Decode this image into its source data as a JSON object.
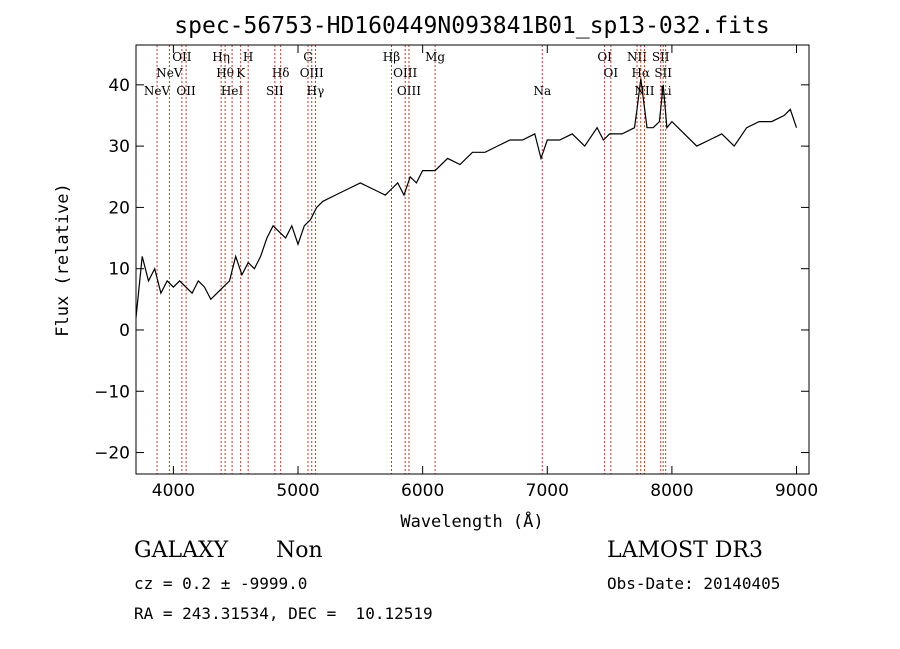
{
  "chart_data": {
    "type": "line",
    "title": "spec-56753-HD160449N093841B01_sp13-032.fits",
    "xlabel": "Wavelength (Å)",
    "ylabel": "Flux (relative)",
    "xlim": [
      3700,
      9100
    ],
    "ylim": [
      -23.5,
      46.5
    ],
    "xticks": [
      4000,
      5000,
      6000,
      7000,
      8000,
      9000
    ],
    "yticks": [
      -20,
      -10,
      0,
      10,
      20,
      30,
      40
    ],
    "grid": false,
    "series": [
      {
        "x": [
          3700,
          3750,
          3800,
          3850,
          3900,
          3950,
          4000,
          4050,
          4100,
          4150,
          4200,
          4250,
          4300,
          4350,
          4400,
          4450,
          4500,
          4550,
          4600,
          4650,
          4700,
          4750,
          4800,
          4850,
          4900,
          4950,
          5000,
          5050,
          5100,
          5150,
          5200,
          5300,
          5400,
          5500,
          5600,
          5700,
          5750,
          5800,
          5850,
          5900,
          5950,
          6000,
          6100,
          6200,
          6300,
          6400,
          6500,
          6600,
          6700,
          6800,
          6900,
          6950,
          7000,
          7100,
          7200,
          7300,
          7400,
          7450,
          7500,
          7600,
          7700,
          7720,
          7750,
          7800,
          7850,
          7900,
          7930,
          7960,
          8000,
          8100,
          8200,
          8300,
          8400,
          8500,
          8600,
          8700,
          8800,
          8900,
          8950,
          9000
        ],
        "y": [
          2,
          12,
          8,
          10,
          6,
          8,
          7,
          8,
          7,
          6,
          8,
          7,
          5,
          6,
          7,
          8,
          12,
          9,
          11,
          10,
          12,
          15,
          17,
          16,
          15,
          17,
          14,
          17,
          18,
          20,
          21,
          22,
          23,
          24,
          23,
          22,
          23,
          24,
          22,
          25,
          24,
          26,
          26,
          28,
          27,
          29,
          29,
          30,
          31,
          31,
          32,
          28,
          31,
          31,
          32,
          30,
          33,
          31,
          32,
          32,
          33,
          36,
          41,
          33,
          33,
          34,
          40,
          33,
          34,
          32,
          30,
          31,
          32,
          30,
          33,
          34,
          34,
          35,
          36,
          33
        ]
      }
    ],
    "lines": [
      {
        "x": 3869,
        "label": "NeV",
        "row": 2
      },
      {
        "x": 3968,
        "label": "NeV",
        "row": 1
      },
      {
        "x": 4068,
        "label": "OII",
        "row": 0
      },
      {
        "x": 4102,
        "label": "OII",
        "row": 2
      },
      {
        "x": 4383,
        "label": "Hη",
        "row": 0
      },
      {
        "x": 4415,
        "label": "Hθ",
        "row": 1
      },
      {
        "x": 4471,
        "label": "HeI",
        "row": 2
      },
      {
        "x": 4540,
        "label": "K",
        "row": 1
      },
      {
        "x": 4600,
        "label": "H",
        "row": 0
      },
      {
        "x": 4861,
        "label": "Hδ",
        "row": 1
      },
      {
        "x": 4814,
        "label": "SII",
        "row": 2
      },
      {
        "x": 5080,
        "label": "G",
        "row": 0
      },
      {
        "x": 5110,
        "label": "OIII",
        "row": 1
      },
      {
        "x": 5140,
        "label": "Hγ",
        "row": 2
      },
      {
        "x": 5750,
        "label": "Hβ",
        "row": 0
      },
      {
        "x": 5860,
        "label": "OIII",
        "row": 1
      },
      {
        "x": 5890,
        "label": "OIII",
        "row": 2
      },
      {
        "x": 6100,
        "label": "Mg",
        "row": 0
      },
      {
        "x": 6960,
        "label": "Na",
        "row": 2
      },
      {
        "x": 7460,
        "label": "OI",
        "row": 0
      },
      {
        "x": 7510,
        "label": "OI",
        "row": 1
      },
      {
        "x": 7720,
        "label": "NII",
        "row": 0
      },
      {
        "x": 7750,
        "label": "Hα",
        "row": 1
      },
      {
        "x": 7780,
        "label": "NII",
        "row": 2
      },
      {
        "x": 7910,
        "label": "SII",
        "row": 0
      },
      {
        "x": 7930,
        "label": "SII",
        "row": 1
      },
      {
        "x": 7950,
        "label": "Li",
        "row": 2
      }
    ]
  },
  "info": {
    "object_type": "GALAXY",
    "subclass": "Non",
    "survey": "LAMOST DR3",
    "cz": "cz = 0.2 ± -9999.0",
    "obs_date": "Obs-Date: 20140405",
    "coords": "RA = 243.31534, DEC =  10.12519"
  }
}
